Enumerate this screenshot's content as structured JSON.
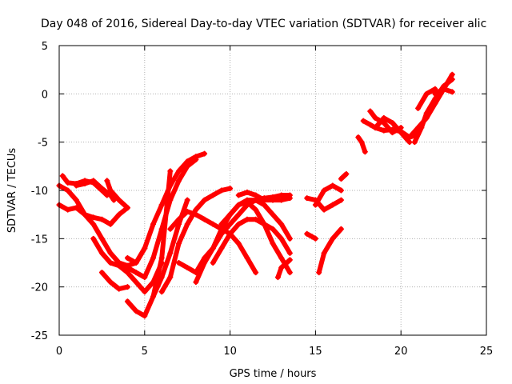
{
  "chart_data": {
    "type": "scatter",
    "title": "Day 048 of 2016, Sidereal Day-to-day VTEC variation (SDTVAR) for receiver alic",
    "xlabel": "GPS time / hours",
    "ylabel": "SDTVAR / TECUs",
    "xlim": [
      0,
      25
    ],
    "ylim": [
      -25,
      5
    ],
    "xticks": [
      0,
      5,
      10,
      15,
      20,
      25
    ],
    "yticks": [
      -25,
      -20,
      -15,
      -10,
      -5,
      0,
      5
    ],
    "grid": true,
    "marker": "+",
    "color": "#ff0000",
    "series": [
      {
        "x": [
          0.0,
          0.5,
          1.0,
          1.5,
          2.0,
          2.5,
          3.0,
          3.5,
          4.0
        ],
        "y": [
          -9.5,
          -10.0,
          -11.0,
          -12.5,
          -12.8,
          -13.0,
          -13.5,
          -12.5,
          -11.8
        ]
      },
      {
        "x": [
          0.0,
          0.5,
          1.0,
          1.5,
          2.0,
          2.5,
          3.0,
          3.5,
          4.0,
          4.5,
          5.0
        ],
        "y": [
          -11.5,
          -12.0,
          -11.8,
          -12.5,
          -13.5,
          -15.0,
          -16.5,
          -17.5,
          -17.8,
          -17.5,
          -16.0
        ]
      },
      {
        "x": [
          0.2,
          0.5,
          1.0,
          1.5,
          2.0,
          2.5,
          2.8
        ],
        "y": [
          -8.5,
          -9.2,
          -9.3,
          -9.0,
          -9.2,
          -10.0,
          -10.5
        ]
      },
      {
        "x": [
          1.0,
          1.5,
          2.0,
          2.5,
          3.0,
          3.2
        ],
        "y": [
          -9.5,
          -9.3,
          -9.0,
          -9.8,
          -10.5,
          -11.0
        ]
      },
      {
        "x": [
          2.8,
          3.0,
          3.5,
          4.0
        ],
        "y": [
          -9.0,
          -10.0,
          -11.0,
          -11.8
        ]
      },
      {
        "x": [
          2.0,
          2.5,
          3.0,
          3.5,
          4.0,
          4.5,
          5.0,
          5.5,
          6.0
        ],
        "y": [
          -15.0,
          -16.5,
          -17.5,
          -17.8,
          -18.5,
          -19.5,
          -20.5,
          -19.5,
          -17.5
        ]
      },
      {
        "x": [
          2.5,
          3.0,
          3.5,
          4.0
        ],
        "y": [
          -18.5,
          -19.5,
          -20.2,
          -20.0
        ]
      },
      {
        "x": [
          4.0,
          4.5,
          5.0,
          5.5,
          6.0,
          6.5,
          7.0,
          7.5,
          8.0,
          8.5
        ],
        "y": [
          -17.0,
          -17.5,
          -16.0,
          -13.5,
          -11.5,
          -9.5,
          -8.0,
          -7.0,
          -6.5,
          -6.2
        ]
      },
      {
        "x": [
          4.0,
          4.5,
          5.0,
          5.5,
          6.0,
          6.5,
          7.0,
          7.5,
          8.0
        ],
        "y": [
          -18.0,
          -18.5,
          -19.0,
          -17.0,
          -14.0,
          -11.0,
          -9.0,
          -7.5,
          -6.8
        ]
      },
      {
        "x": [
          4.0,
          4.5,
          5.0,
          5.5,
          6.0,
          6.5
        ],
        "y": [
          -21.5,
          -22.5,
          -23.0,
          -21.0,
          -17.0,
          -8.0
        ]
      },
      {
        "x": [
          5.5,
          6.0,
          6.5,
          7.0,
          7.5
        ],
        "y": [
          -21.0,
          -19.0,
          -16.5,
          -13.5,
          -11.0
        ]
      },
      {
        "x": [
          6.0,
          6.5,
          7.0,
          7.5,
          8.0,
          8.5,
          9.0,
          9.5,
          10.0
        ],
        "y": [
          -20.5,
          -19.0,
          -15.5,
          -13.5,
          -12.0,
          -11.0,
          -10.5,
          -10.0,
          -9.8
        ]
      },
      {
        "x": [
          6.5,
          7.0,
          7.5,
          8.0,
          8.5,
          9.0,
          9.5,
          10.0,
          10.5,
          11.0,
          11.5
        ],
        "y": [
          -14.0,
          -13.0,
          -12.2,
          -12.5,
          -13.0,
          -13.5,
          -14.0,
          -14.5,
          -15.5,
          -17.0,
          -18.5
        ]
      },
      {
        "x": [
          7.0,
          7.5,
          8.0,
          8.5,
          9.0,
          9.5,
          10.0,
          10.5,
          11.0,
          11.5,
          12.0,
          12.5,
          13.0,
          13.5
        ],
        "y": [
          -17.5,
          -18.0,
          -18.5,
          -17.0,
          -16.0,
          -14.5,
          -13.5,
          -12.5,
          -11.5,
          -11.0,
          -10.8,
          -10.7,
          -10.5,
          -10.5
        ]
      },
      {
        "x": [
          8.0,
          8.5,
          9.0,
          9.5,
          10.0,
          10.5,
          11.0,
          11.5,
          12.0,
          12.5,
          13.0,
          13.5
        ],
        "y": [
          -19.5,
          -17.5,
          -16.0,
          -14.0,
          -12.5,
          -11.5,
          -11.0,
          -11.0,
          -11.5,
          -12.5,
          -13.5,
          -15.0
        ]
      },
      {
        "x": [
          9.0,
          9.5,
          10.0,
          10.5,
          11.0,
          11.5,
          12.0,
          12.5,
          13.0,
          13.5
        ],
        "y": [
          -17.5,
          -16.0,
          -14.5,
          -13.5,
          -13.0,
          -13.0,
          -13.5,
          -14.0,
          -15.0,
          -16.5
        ]
      },
      {
        "x": [
          9.5,
          10.0,
          10.5,
          11.0,
          11.5,
          12.0,
          12.5,
          13.0,
          13.5
        ],
        "y": [
          -13.5,
          -12.5,
          -11.5,
          -11.2,
          -12.0,
          -13.5,
          -15.5,
          -17.0,
          -18.5
        ]
      },
      {
        "x": [
          10.5,
          11.0,
          11.5,
          12.0,
          12.5,
          13.0,
          13.5
        ],
        "y": [
          -10.5,
          -10.2,
          -10.5,
          -11.0,
          -11.0,
          -11.0,
          -10.8
        ]
      },
      {
        "x": [
          12.8,
          13.0,
          13.5
        ],
        "y": [
          -19.0,
          -18.0,
          -17.2
        ]
      },
      {
        "x": [
          14.5,
          14.8,
          15.0
        ],
        "y": [
          -14.5,
          -14.8,
          -15.0
        ]
      },
      {
        "x": [
          14.5,
          15.0,
          15.5,
          16.0,
          16.5
        ],
        "y": [
          -10.8,
          -11.0,
          -12.0,
          -11.5,
          -11.0
        ]
      },
      {
        "x": [
          15.0,
          15.5,
          16.0,
          16.5
        ],
        "y": [
          -11.5,
          -10.0,
          -9.5,
          -10.0
        ]
      },
      {
        "x": [
          15.2,
          15.5,
          16.0,
          16.5
        ],
        "y": [
          -18.5,
          -16.5,
          -15.0,
          -14.0
        ]
      },
      {
        "x": [
          16.5,
          16.8
        ],
        "y": [
          -8.8,
          -8.3
        ]
      },
      {
        "x": [
          17.5,
          17.7,
          17.9
        ],
        "y": [
          -4.5,
          -5.0,
          -6.0
        ]
      },
      {
        "x": [
          17.8,
          18.2,
          18.5,
          19.0,
          19.5,
          20.0,
          20.5,
          21.0
        ],
        "y": [
          -2.8,
          -3.2,
          -3.5,
          -3.8,
          -3.7,
          -3.9,
          -4.5,
          -4.2
        ]
      },
      {
        "x": [
          18.5,
          19.0,
          19.5,
          20.0,
          20.5
        ],
        "y": [
          -3.5,
          -2.5,
          -3.0,
          -4.0,
          -5.0
        ]
      },
      {
        "x": [
          18.2,
          18.5,
          19.0,
          19.5,
          20.0
        ],
        "y": [
          -1.8,
          -2.5,
          -3.0,
          -4.0,
          -3.5
        ]
      },
      {
        "x": [
          20.5,
          21.0,
          21.5,
          22.0,
          22.5,
          23.0
        ],
        "y": [
          -4.5,
          -3.5,
          -2.5,
          -1.0,
          0.5,
          2.0
        ]
      },
      {
        "x": [
          20.8,
          21.2,
          21.5,
          22.0,
          22.5,
          23.0
        ],
        "y": [
          -5.0,
          -3.5,
          -2.0,
          -0.5,
          0.8,
          1.5
        ]
      },
      {
        "x": [
          21.0,
          21.5,
          22.0
        ],
        "y": [
          -1.5,
          0.0,
          0.5
        ]
      },
      {
        "x": [
          22.0,
          22.5,
          23.0
        ],
        "y": [
          0.0,
          0.5,
          0.2
        ]
      }
    ]
  }
}
